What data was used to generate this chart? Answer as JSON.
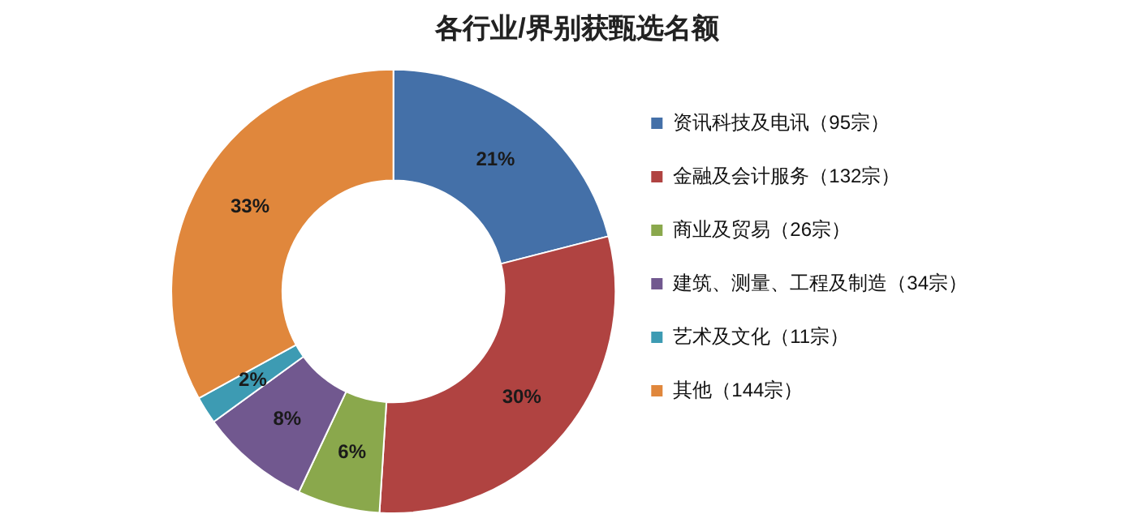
{
  "chart_data": {
    "type": "donut",
    "title": "各行业/界别获甄选名额",
    "categories": [
      "资讯科技及电讯（95宗）",
      "金融及会计服务（132宗）",
      "商业及贸易（26宗）",
      "建筑、测量、工程及制造（34宗）",
      "艺术及文化（11宗）",
      "其他（144宗）"
    ],
    "values": [
      21,
      30,
      6,
      8,
      2,
      33
    ],
    "colors": [
      "#4470a8",
      "#b04341",
      "#8aa84c",
      "#71588f",
      "#3d9bb3",
      "#e0873c"
    ],
    "value_labels": [
      "21%",
      "30%",
      "6%",
      "8%",
      "2%",
      "33%"
    ],
    "legend": "right"
  }
}
